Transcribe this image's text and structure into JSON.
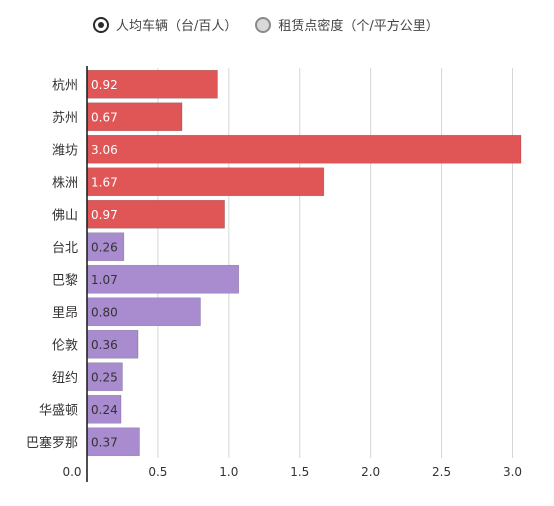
{
  "legend": [
    {
      "label": "人均车辆（台/百人）",
      "selected": true
    },
    {
      "label": "租赁点密度（个/平方公里）",
      "selected": false
    }
  ],
  "colors": {
    "red": "#e05555",
    "purple": "#a98bd0",
    "grid": "#d6d6d6",
    "axis": "#222222",
    "text": "#333333"
  },
  "chart_data": {
    "type": "bar",
    "orientation": "horizontal",
    "categories": [
      "杭州",
      "苏州",
      "潍坊",
      "株洲",
      "佛山",
      "台北",
      "巴黎",
      "里昂",
      "伦敦",
      "纽约",
      "华盛顿",
      "巴塞罗那"
    ],
    "values": [
      0.92,
      0.67,
      3.06,
      1.67,
      0.97,
      0.26,
      1.07,
      0.8,
      0.36,
      0.25,
      0.24,
      0.37
    ],
    "value_labels": [
      "0.92",
      "0.67",
      "3.06",
      "1.67",
      "0.97",
      "0.26",
      "1.07",
      "0.80",
      "0.36",
      "0.25",
      "0.24",
      "0.37"
    ],
    "series_color_by_index": [
      "red",
      "red",
      "red",
      "red",
      "red",
      "purple",
      "purple",
      "purple",
      "purple",
      "purple",
      "purple",
      "purple"
    ],
    "xlim": [
      0,
      3.06
    ],
    "xticks": [
      0.0,
      0.5,
      1.0,
      1.5,
      2.0,
      2.5,
      3.0
    ],
    "xtick_labels": [
      "0.0",
      "0.5",
      "1.0",
      "1.5",
      "2.0",
      "2.5",
      "3.0"
    ],
    "grid": true,
    "legend_position": "top"
  }
}
